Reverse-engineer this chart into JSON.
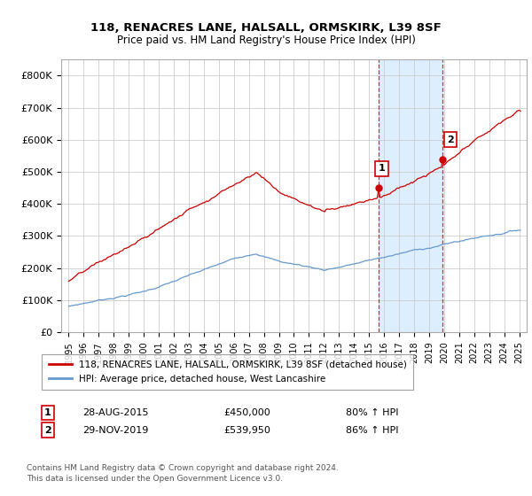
{
  "title": "118, RENACRES LANE, HALSALL, ORMSKIRK, L39 8SF",
  "subtitle": "Price paid vs. HM Land Registry's House Price Index (HPI)",
  "yticks": [
    0,
    100000,
    200000,
    300000,
    400000,
    500000,
    600000,
    700000,
    800000
  ],
  "ytick_labels": [
    "£0",
    "£100K",
    "£200K",
    "£300K",
    "£400K",
    "£500K",
    "£600K",
    "£700K",
    "£800K"
  ],
  "red_line_color": "#cc0000",
  "blue_line_color": "#6699cc",
  "highlight_color": "#ddeeff",
  "vline_color": "#cc0000",
  "point1_x": 2015.65,
  "point1_y": 450000,
  "point2_x": 2019.91,
  "point2_y": 539950,
  "annotation1": {
    "num": "1",
    "date": "28-AUG-2015",
    "price": "£450,000",
    "pct": "80% ↑ HPI"
  },
  "annotation2": {
    "num": "2",
    "date": "29-NOV-2019",
    "price": "£539,950",
    "pct": "86% ↑ HPI"
  },
  "legend_line1": "118, RENACRES LANE, HALSALL, ORMSKIRK, L39 8SF (detached house)",
  "legend_line2": "HPI: Average price, detached house, West Lancashire",
  "footer": "Contains HM Land Registry data © Crown copyright and database right 2024.\nThis data is licensed under the Open Government Licence v3.0.",
  "xlim": [
    1994.5,
    2025.5
  ],
  "ylim": [
    0,
    850000
  ],
  "background_color": "#ffffff",
  "plot_bg_color": "#ffffff"
}
